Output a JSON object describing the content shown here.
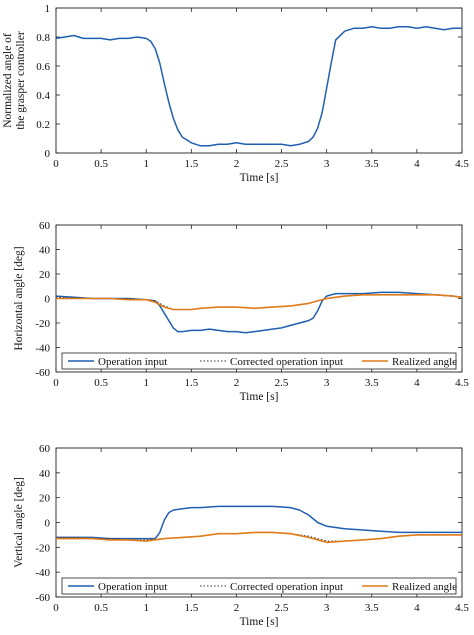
{
  "colors": {
    "operation": "#1f5fb0",
    "corrected": "#333333",
    "realized": "#e07b1a",
    "axis": "#222222"
  },
  "chart_data": [
    {
      "type": "line",
      "xlabel": "Time [s]",
      "ylabel_lines": [
        "Normalized angle of",
        "the grasper controller"
      ],
      "xlim": [
        0,
        4.5
      ],
      "ylim": [
        0,
        1
      ],
      "x_ticks": [
        "0",
        "0.5",
        "1",
        "1.5",
        "2",
        "2.5",
        "3",
        "3.5",
        "4",
        "4.5"
      ],
      "y_ticks": [
        "0",
        "0.2",
        "0.4",
        "0.6",
        "0.8",
        "1"
      ],
      "grid": false,
      "series": [
        {
          "key": "grasp",
          "x": [
            0,
            0.1,
            0.2,
            0.3,
            0.4,
            0.5,
            0.6,
            0.7,
            0.8,
            0.9,
            1.0,
            1.05,
            1.1,
            1.15,
            1.2,
            1.25,
            1.3,
            1.35,
            1.4,
            1.45,
            1.5,
            1.55,
            1.6,
            1.7,
            1.8,
            1.9,
            2.0,
            2.1,
            2.2,
            2.3,
            2.4,
            2.5,
            2.6,
            2.7,
            2.8,
            2.85,
            2.9,
            2.95,
            3.0,
            3.05,
            3.1,
            3.2,
            3.3,
            3.4,
            3.5,
            3.6,
            3.7,
            3.8,
            3.9,
            4.0,
            4.1,
            4.2,
            4.3,
            4.4,
            4.5
          ],
          "y": [
            0.79,
            0.8,
            0.81,
            0.79,
            0.79,
            0.79,
            0.78,
            0.79,
            0.79,
            0.8,
            0.79,
            0.77,
            0.72,
            0.62,
            0.48,
            0.35,
            0.24,
            0.16,
            0.11,
            0.09,
            0.07,
            0.06,
            0.05,
            0.05,
            0.06,
            0.06,
            0.07,
            0.06,
            0.06,
            0.06,
            0.06,
            0.06,
            0.05,
            0.06,
            0.08,
            0.11,
            0.17,
            0.28,
            0.45,
            0.62,
            0.78,
            0.84,
            0.86,
            0.86,
            0.87,
            0.86,
            0.86,
            0.87,
            0.87,
            0.86,
            0.87,
            0.86,
            0.85,
            0.86,
            0.86
          ]
        }
      ]
    },
    {
      "type": "line",
      "xlabel": "Time [s]",
      "ylabel": "Horizontal angle [deg]",
      "xlim": [
        0,
        4.5
      ],
      "ylim": [
        -60,
        60
      ],
      "x_ticks": [
        "0",
        "0.5",
        "1",
        "1.5",
        "2",
        "2.5",
        "3",
        "3.5",
        "4",
        "4.5"
      ],
      "y_ticks": [
        "-60",
        "-40",
        "-20",
        "0",
        "20",
        "40",
        "60"
      ],
      "grid": false,
      "legend": "bottom",
      "series": [
        {
          "key": "operation",
          "name": "Operation input",
          "x": [
            0,
            0.2,
            0.4,
            0.6,
            0.8,
            1.0,
            1.1,
            1.15,
            1.2,
            1.25,
            1.3,
            1.35,
            1.4,
            1.5,
            1.6,
            1.7,
            1.8,
            1.9,
            2.0,
            2.1,
            2.2,
            2.3,
            2.4,
            2.5,
            2.6,
            2.7,
            2.8,
            2.85,
            2.9,
            2.95,
            3.0,
            3.05,
            3.1,
            3.2,
            3.4,
            3.6,
            3.8,
            4.0,
            4.2,
            4.4,
            4.5
          ],
          "y": [
            2,
            1,
            0,
            0,
            0,
            -1,
            -2,
            -6,
            -12,
            -18,
            -24,
            -27,
            -27,
            -26,
            -26,
            -25,
            -26,
            -27,
            -27,
            -28,
            -27,
            -26,
            -25,
            -24,
            -22,
            -20,
            -18,
            -16,
            -10,
            -2,
            2,
            3,
            4,
            4,
            4,
            5,
            5,
            4,
            3,
            2,
            1
          ]
        },
        {
          "key": "corrected",
          "name": "Corrected operation input",
          "x": [
            0,
            0.2,
            0.4,
            0.6,
            0.8,
            1.0,
            1.1,
            1.2,
            1.3,
            1.4,
            1.5,
            1.6,
            1.8,
            2.0,
            2.2,
            2.4,
            2.6,
            2.8,
            2.9,
            3.0,
            3.1,
            3.2,
            3.4,
            3.6,
            3.8,
            4.0,
            4.2,
            4.4,
            4.5
          ],
          "y": [
            1,
            0.5,
            0,
            0,
            0,
            -1,
            -2,
            -6,
            -9,
            -9,
            -9,
            -8,
            -7,
            -7,
            -8,
            -7,
            -6,
            -4,
            -2,
            0,
            1,
            2,
            3,
            3,
            3,
            3,
            3,
            2,
            1
          ]
        },
        {
          "key": "realized",
          "name": "Realized angle",
          "x": [
            0,
            0.2,
            0.4,
            0.6,
            0.8,
            1.0,
            1.1,
            1.2,
            1.3,
            1.4,
            1.5,
            1.6,
            1.8,
            2.0,
            2.2,
            2.4,
            2.6,
            2.8,
            2.9,
            3.0,
            3.1,
            3.2,
            3.4,
            3.6,
            3.8,
            4.0,
            4.2,
            4.4,
            4.5
          ],
          "y": [
            0,
            0,
            0,
            0,
            -1,
            -1,
            -3,
            -7,
            -9,
            -9,
            -9,
            -8,
            -7,
            -7,
            -8,
            -7,
            -6,
            -4,
            -2,
            0,
            1,
            2,
            3,
            3,
            3,
            3,
            3,
            2,
            1
          ]
        }
      ]
    },
    {
      "type": "line",
      "xlabel": "Time [s]",
      "ylabel": "Vertical angle [deg]",
      "xlim": [
        0,
        4.5
      ],
      "ylim": [
        -60,
        60
      ],
      "x_ticks": [
        "0",
        "0.5",
        "1",
        "1.5",
        "2",
        "2.5",
        "3",
        "3.5",
        "4",
        "4.5"
      ],
      "y_ticks": [
        "-60",
        "-40",
        "-20",
        "0",
        "20",
        "40",
        "60"
      ],
      "grid": false,
      "legend": "bottom",
      "series": [
        {
          "key": "operation",
          "name": "Operation input",
          "x": [
            0,
            0.2,
            0.4,
            0.6,
            0.8,
            1.0,
            1.1,
            1.15,
            1.2,
            1.25,
            1.3,
            1.4,
            1.5,
            1.6,
            1.8,
            2.0,
            2.2,
            2.4,
            2.6,
            2.7,
            2.8,
            2.9,
            3.0,
            3.2,
            3.4,
            3.6,
            3.8,
            4.0,
            4.2,
            4.4,
            4.5
          ],
          "y": [
            -12,
            -12,
            -12,
            -13,
            -13,
            -13,
            -13,
            -8,
            2,
            8,
            10,
            11,
            12,
            12,
            13,
            13,
            13,
            13,
            12,
            10,
            6,
            0,
            -3,
            -5,
            -6,
            -7,
            -8,
            -8,
            -8,
            -8,
            -8
          ]
        },
        {
          "key": "corrected",
          "name": "Corrected operation input",
          "x": [
            0,
            0.2,
            0.4,
            0.6,
            0.8,
            1.0,
            1.2,
            1.4,
            1.6,
            1.8,
            2.0,
            2.2,
            2.4,
            2.6,
            2.8,
            3.0,
            3.2,
            3.4,
            3.6,
            3.8,
            4.0,
            4.2,
            4.4,
            4.5
          ],
          "y": [
            -12,
            -12,
            -13,
            -13,
            -14,
            -14,
            -13,
            -12,
            -11,
            -9,
            -9,
            -8,
            -8,
            -9,
            -11,
            -15,
            -15,
            -14,
            -13,
            -11,
            -10,
            -10,
            -10,
            -10
          ]
        },
        {
          "key": "realized",
          "name": "Realized angle",
          "x": [
            0,
            0.2,
            0.4,
            0.6,
            0.8,
            1.0,
            1.2,
            1.4,
            1.6,
            1.8,
            2.0,
            2.2,
            2.4,
            2.6,
            2.8,
            3.0,
            3.2,
            3.4,
            3.6,
            3.8,
            4.0,
            4.2,
            4.4,
            4.5
          ],
          "y": [
            -13,
            -13,
            -13,
            -14,
            -14,
            -15,
            -13,
            -12,
            -11,
            -9,
            -9,
            -8,
            -8,
            -9,
            -12,
            -16,
            -15,
            -14,
            -13,
            -11,
            -10,
            -10,
            -10,
            -10
          ]
        }
      ]
    }
  ]
}
